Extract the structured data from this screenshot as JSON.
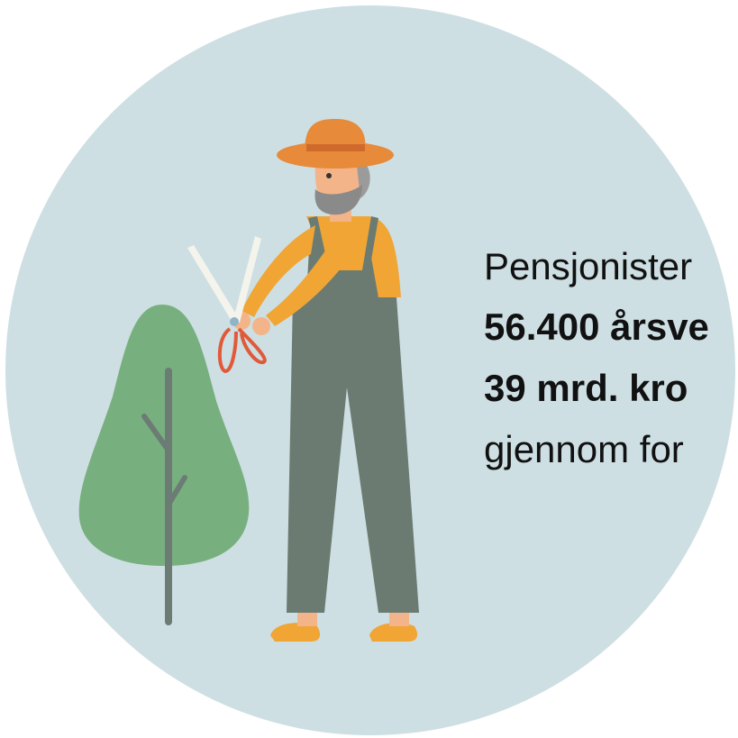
{
  "text": {
    "lines": [
      {
        "text": "Pensjonister",
        "bold": false
      },
      {
        "text": "56.400 årsve",
        "bold": true
      },
      {
        "text": "39 mrd. kro",
        "bold": true
      },
      {
        "text": "gjennom for",
        "bold": false
      }
    ]
  }
}
